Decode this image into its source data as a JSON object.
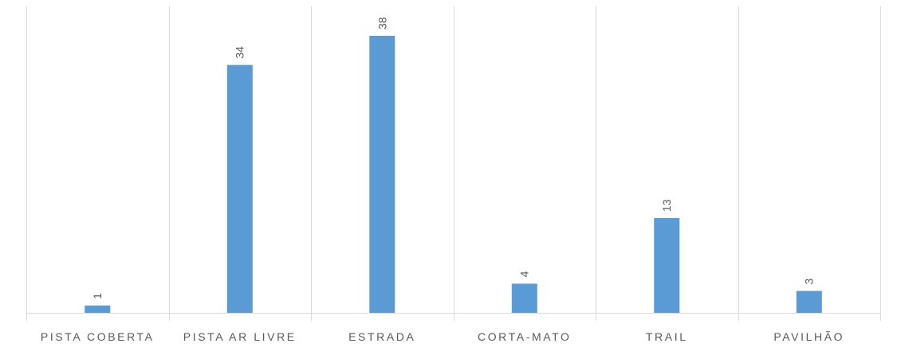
{
  "chart_data": {
    "type": "bar",
    "categories": [
      "PISTA COBERTA",
      "PISTA AR LIVRE",
      "ESTRADA",
      "CORTA-MATO",
      "TRAIL",
      "PAVILHÃO"
    ],
    "values": [
      1,
      34,
      38,
      4,
      13,
      3
    ],
    "title": "",
    "xlabel": "",
    "ylabel": "",
    "ylim": [
      0,
      40
    ],
    "grid": "vertical category separators",
    "legend": "none",
    "data_labels": "rotated, above bars",
    "bar_color": "#5b9bd5",
    "text_color": "#595959",
    "grid_color": "#d9d9d9"
  }
}
